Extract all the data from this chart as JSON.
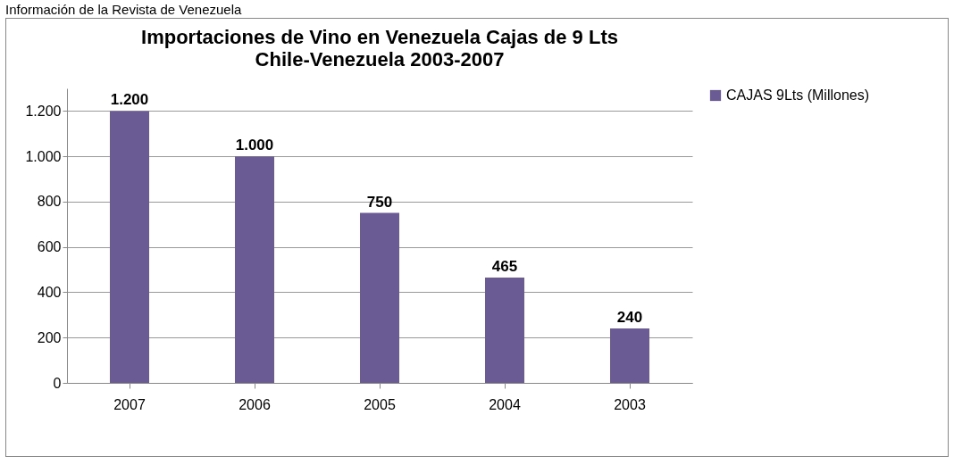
{
  "chart_data": {
    "type": "bar",
    "title": "Importaciones de Vino en Venezuela Cajas de 9 Lts",
    "subtitle": "Chile-Venezuela 2003-2007",
    "annotations": [
      "Información de la Revista de Venezuela"
    ],
    "categories": [
      "2007",
      "2006",
      "2005",
      "2004",
      "2003"
    ],
    "series": [
      {
        "name": "CAJAS 9Lts (Millones)",
        "color": "#6b5b95",
        "values": [
          1200,
          1000,
          750,
          465,
          240
        ],
        "value_labels": [
          "1.200",
          "1.000",
          "750",
          "465",
          "240"
        ]
      }
    ],
    "ylim": [
      0,
      1300
    ],
    "yticks": [
      0,
      200,
      400,
      600,
      800,
      {
        "value": 1000,
        "label": "1.000"
      },
      {
        "value": 1200,
        "label": "1.200"
      }
    ],
    "grid": "y",
    "legend": "right"
  }
}
